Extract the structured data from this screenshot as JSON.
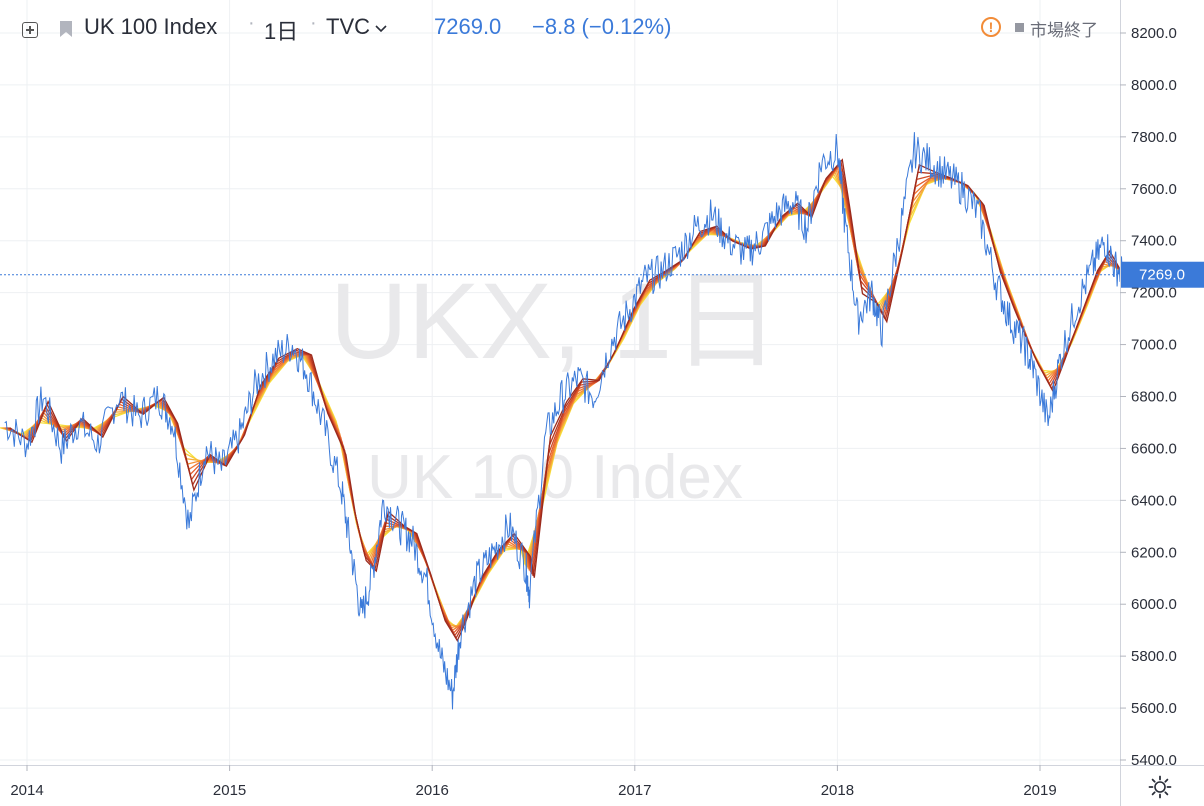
{
  "header": {
    "symbol": "UK 100 Index",
    "interval": "1日",
    "exchange": "TVC",
    "price": "7269.0",
    "change": "−8.8 (−0.12%)",
    "market_status": "市場終了"
  },
  "watermark": {
    "symbol_line": "UKX, 1日",
    "name_line": "UK 100 Index"
  },
  "price_label": "7269.0",
  "icons": {
    "add": "plus-square-icon",
    "flag": "flag-icon",
    "warning": "exclamation-circle-icon",
    "settings": "gear-icon"
  },
  "colors": {
    "price_line": "#3b7ad9",
    "ribbon_dark": "#9c2a1c",
    "ribbon_light": "#f7e23c",
    "price_label_bg": "#3b7ad9"
  },
  "chart_data": {
    "type": "line",
    "title": "UK 100 Index",
    "xlabel": "",
    "ylabel": "",
    "x_ticks": [
      "2014",
      "2015",
      "2016",
      "2017",
      "2018",
      "2019"
    ],
    "y_ticks": [
      "5400.0",
      "5600.0",
      "5800.0",
      "6000.0",
      "6200.0",
      "6400.0",
      "6600.0",
      "6800.0",
      "7000.0",
      "7200.0",
      "7400.0",
      "7600.0",
      "7800.0",
      "8000.0",
      "8200.0"
    ],
    "xlim": [
      2013.89,
      2019.45
    ],
    "ylim": [
      5400,
      8300
    ],
    "last_value": 7269.0,
    "grid": true,
    "series": [
      {
        "name": "",
        "x": [
          2013.89,
          2014.0,
          2014.08,
          2014.17,
          2014.25,
          2014.35,
          2014.45,
          2014.55,
          2014.65,
          2014.72,
          2014.8,
          2014.88,
          2014.96,
          2015.05,
          2015.13,
          2015.22,
          2015.31,
          2015.38,
          2015.46,
          2015.55,
          2015.6,
          2015.65,
          2015.7,
          2015.76,
          2015.84,
          2015.9,
          2015.97,
          2016.04,
          2016.1,
          2016.14,
          2016.22,
          2016.3,
          2016.38,
          2016.46,
          2016.48,
          2016.56,
          2016.64,
          2016.72,
          2016.8,
          2016.88,
          2016.97,
          2017.05,
          2017.13,
          2017.22,
          2017.3,
          2017.38,
          2017.46,
          2017.55,
          2017.62,
          2017.7,
          2017.78,
          2017.85,
          2017.92,
          2018.0,
          2018.04,
          2018.1,
          2018.17,
          2018.22,
          2018.3,
          2018.38,
          2018.46,
          2018.54,
          2018.62,
          2018.7,
          2018.78,
          2018.85,
          2018.92,
          2018.97,
          2019.04,
          2019.1,
          2019.18,
          2019.26,
          2019.32,
          2019.37,
          2019.42
        ],
        "y": [
          6700,
          6620,
          6800,
          6600,
          6700,
          6620,
          6800,
          6720,
          6800,
          6700,
          6300,
          6600,
          6520,
          6650,
          6850,
          6950,
          7000,
          6900,
          6700,
          6450,
          6200,
          5950,
          6100,
          6400,
          6300,
          6250,
          6100,
          5800,
          5650,
          5900,
          6100,
          6200,
          6300,
          6150,
          6050,
          6650,
          6800,
          6870,
          6800,
          7000,
          7130,
          7250,
          7280,
          7350,
          7450,
          7500,
          7400,
          7350,
          7400,
          7500,
          7550,
          7450,
          7700,
          7750,
          7450,
          7100,
          7200,
          7050,
          7400,
          7750,
          7700,
          7650,
          7600,
          7500,
          7250,
          7100,
          7000,
          6900,
          6700,
          6950,
          7150,
          7300,
          7400,
          7300,
          7269
        ]
      },
      {
        "name": "",
        "x": [
          2013.89,
          2014.0,
          2014.08,
          2014.17,
          2014.25,
          2014.35,
          2014.45,
          2014.55,
          2014.65,
          2014.72,
          2014.8,
          2014.88,
          2014.96,
          2015.05,
          2015.13,
          2015.22,
          2015.31,
          2015.38,
          2015.46,
          2015.55,
          2015.6,
          2015.65,
          2015.7,
          2015.76,
          2015.84,
          2015.9,
          2015.97,
          2016.04,
          2016.1,
          2016.14,
          2016.22,
          2016.3,
          2016.38,
          2016.46,
          2016.48,
          2016.56,
          2016.64,
          2016.72,
          2016.8,
          2016.88,
          2016.97,
          2017.05,
          2017.13,
          2017.22,
          2017.3,
          2017.38,
          2017.46,
          2017.55,
          2017.62,
          2017.7,
          2017.78,
          2017.85,
          2017.92,
          2018.0,
          2018.04,
          2018.1,
          2018.17,
          2018.22,
          2018.3,
          2018.38,
          2018.46,
          2018.54,
          2018.62,
          2018.7,
          2018.78,
          2018.85,
          2018.92,
          2018.97,
          2019.04,
          2019.1,
          2019.18,
          2019.26,
          2019.32,
          2019.37,
          2019.42
        ],
        "y": [
          6680,
          6640,
          6740,
          6660,
          6700,
          6660,
          6760,
          6740,
          6780,
          6720,
          6520,
          6560,
          6540,
          6620,
          6780,
          6900,
          6960,
          6960,
          6800,
          6640,
          6420,
          6240,
          6160,
          6300,
          6300,
          6280,
          6160,
          6000,
          5900,
          5920,
          6050,
          6160,
          6240,
          6200,
          6130,
          6500,
          6700,
          6820,
          6850,
          6940,
          7080,
          7200,
          7260,
          7310,
          7400,
          7440,
          7410,
          7380,
          7380,
          7460,
          7520,
          7500,
          7600,
          7680,
          7560,
          7300,
          7200,
          7120,
          7300,
          7580,
          7640,
          7640,
          7620,
          7560,
          7360,
          7200,
          7060,
          6960,
          6860,
          6920,
          7060,
          7220,
          7320,
          7300,
          7275
        ]
      }
    ]
  }
}
